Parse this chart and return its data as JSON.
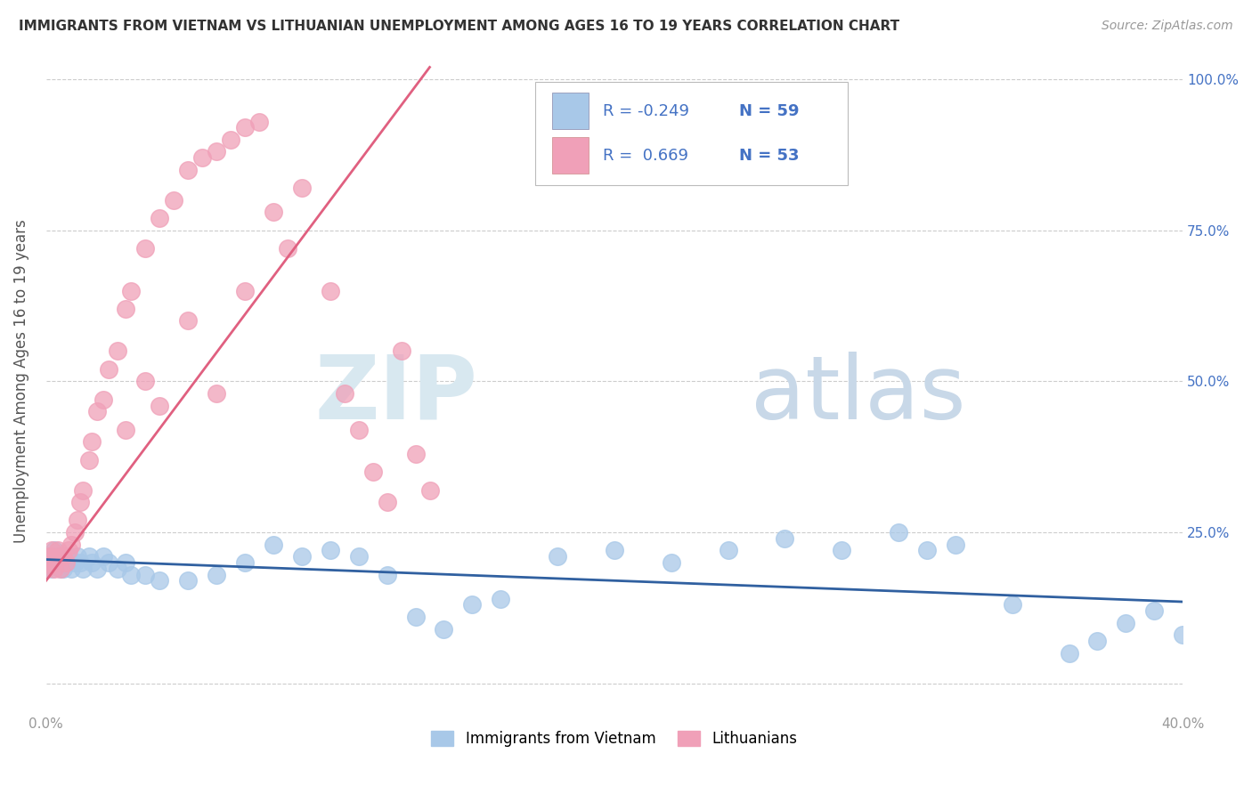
{
  "title": "IMMIGRANTS FROM VIETNAM VS LITHUANIAN UNEMPLOYMENT AMONG AGES 16 TO 19 YEARS CORRELATION CHART",
  "source": "Source: ZipAtlas.com",
  "ylabel": "Unemployment Among Ages 16 to 19 years",
  "xlim": [
    0.0,
    0.4
  ],
  "ylim": [
    -0.05,
    1.05
  ],
  "y_ticks": [
    0.0,
    0.25,
    0.5,
    0.75,
    1.0
  ],
  "y_tick_labels": [
    "",
    "25.0%",
    "50.0%",
    "75.0%",
    "100.0%"
  ],
  "x_ticks": [
    0.0,
    0.1,
    0.2,
    0.3,
    0.4
  ],
  "x_tick_labels": [
    "0.0%",
    "",
    "",
    "",
    "40.0%"
  ],
  "series1_label": "Immigrants from Vietnam",
  "series1_color": "#a8c8e8",
  "series1_line_color": "#3060a0",
  "series1_R": "-0.249",
  "series1_N": "59",
  "series2_label": "Lithuanians",
  "series2_color": "#f0a0b8",
  "series2_line_color": "#e06080",
  "series2_R": "0.669",
  "series2_N": "53",
  "watermark_zip_color": "#d8e8f0",
  "watermark_atlas_color": "#c8d8e8",
  "background_color": "#ffffff",
  "grid_color": "#cccccc",
  "tick_color": "#999999",
  "right_tick_color": "#4472c4",
  "legend_text_color": "#4472c4",
  "title_color": "#333333",
  "source_color": "#999999",
  "ylabel_color": "#555555",
  "series1_x": [
    0.0,
    0.0,
    0.001,
    0.001,
    0.002,
    0.002,
    0.003,
    0.003,
    0.004,
    0.004,
    0.005,
    0.005,
    0.006,
    0.006,
    0.007,
    0.007,
    0.008,
    0.009,
    0.01,
    0.011,
    0.012,
    0.013,
    0.015,
    0.016,
    0.018,
    0.02,
    0.022,
    0.025,
    0.028,
    0.03,
    0.035,
    0.04,
    0.05,
    0.06,
    0.07,
    0.08,
    0.09,
    0.1,
    0.11,
    0.12,
    0.13,
    0.14,
    0.15,
    0.16,
    0.18,
    0.2,
    0.22,
    0.24,
    0.26,
    0.28,
    0.3,
    0.31,
    0.32,
    0.34,
    0.36,
    0.37,
    0.38,
    0.39,
    0.4
  ],
  "series1_y": [
    0.2,
    0.19,
    0.21,
    0.2,
    0.19,
    0.21,
    0.2,
    0.22,
    0.2,
    0.21,
    0.19,
    0.21,
    0.2,
    0.19,
    0.21,
    0.2,
    0.21,
    0.19,
    0.2,
    0.21,
    0.2,
    0.19,
    0.21,
    0.2,
    0.19,
    0.21,
    0.2,
    0.19,
    0.2,
    0.18,
    0.18,
    0.17,
    0.17,
    0.18,
    0.2,
    0.23,
    0.21,
    0.22,
    0.21,
    0.18,
    0.11,
    0.09,
    0.13,
    0.14,
    0.21,
    0.22,
    0.2,
    0.22,
    0.24,
    0.22,
    0.25,
    0.22,
    0.23,
    0.13,
    0.05,
    0.07,
    0.1,
    0.12,
    0.08
  ],
  "series2_x": [
    0.0,
    0.0,
    0.001,
    0.001,
    0.002,
    0.002,
    0.003,
    0.003,
    0.004,
    0.005,
    0.005,
    0.006,
    0.007,
    0.008,
    0.009,
    0.01,
    0.011,
    0.012,
    0.013,
    0.015,
    0.016,
    0.018,
    0.02,
    0.022,
    0.025,
    0.028,
    0.03,
    0.035,
    0.04,
    0.045,
    0.05,
    0.055,
    0.06,
    0.065,
    0.07,
    0.075,
    0.08,
    0.085,
    0.09,
    0.1,
    0.105,
    0.11,
    0.115,
    0.12,
    0.125,
    0.13,
    0.135,
    0.028,
    0.035,
    0.04,
    0.05,
    0.06,
    0.07
  ],
  "series2_y": [
    0.2,
    0.19,
    0.21,
    0.2,
    0.22,
    0.21,
    0.19,
    0.2,
    0.22,
    0.21,
    0.19,
    0.21,
    0.2,
    0.22,
    0.23,
    0.25,
    0.27,
    0.3,
    0.32,
    0.37,
    0.4,
    0.45,
    0.47,
    0.52,
    0.55,
    0.62,
    0.65,
    0.72,
    0.77,
    0.8,
    0.85,
    0.87,
    0.88,
    0.9,
    0.92,
    0.93,
    0.78,
    0.72,
    0.82,
    0.65,
    0.48,
    0.42,
    0.35,
    0.3,
    0.55,
    0.38,
    0.32,
    0.42,
    0.5,
    0.46,
    0.6,
    0.48,
    0.65
  ],
  "trend1_x0": 0.0,
  "trend1_x1": 0.4,
  "trend1_y0": 0.205,
  "trend1_y1": 0.135,
  "trend2_x0": 0.0,
  "trend2_x1": 0.135,
  "trend2_y0": 0.17,
  "trend2_y1": 1.02
}
